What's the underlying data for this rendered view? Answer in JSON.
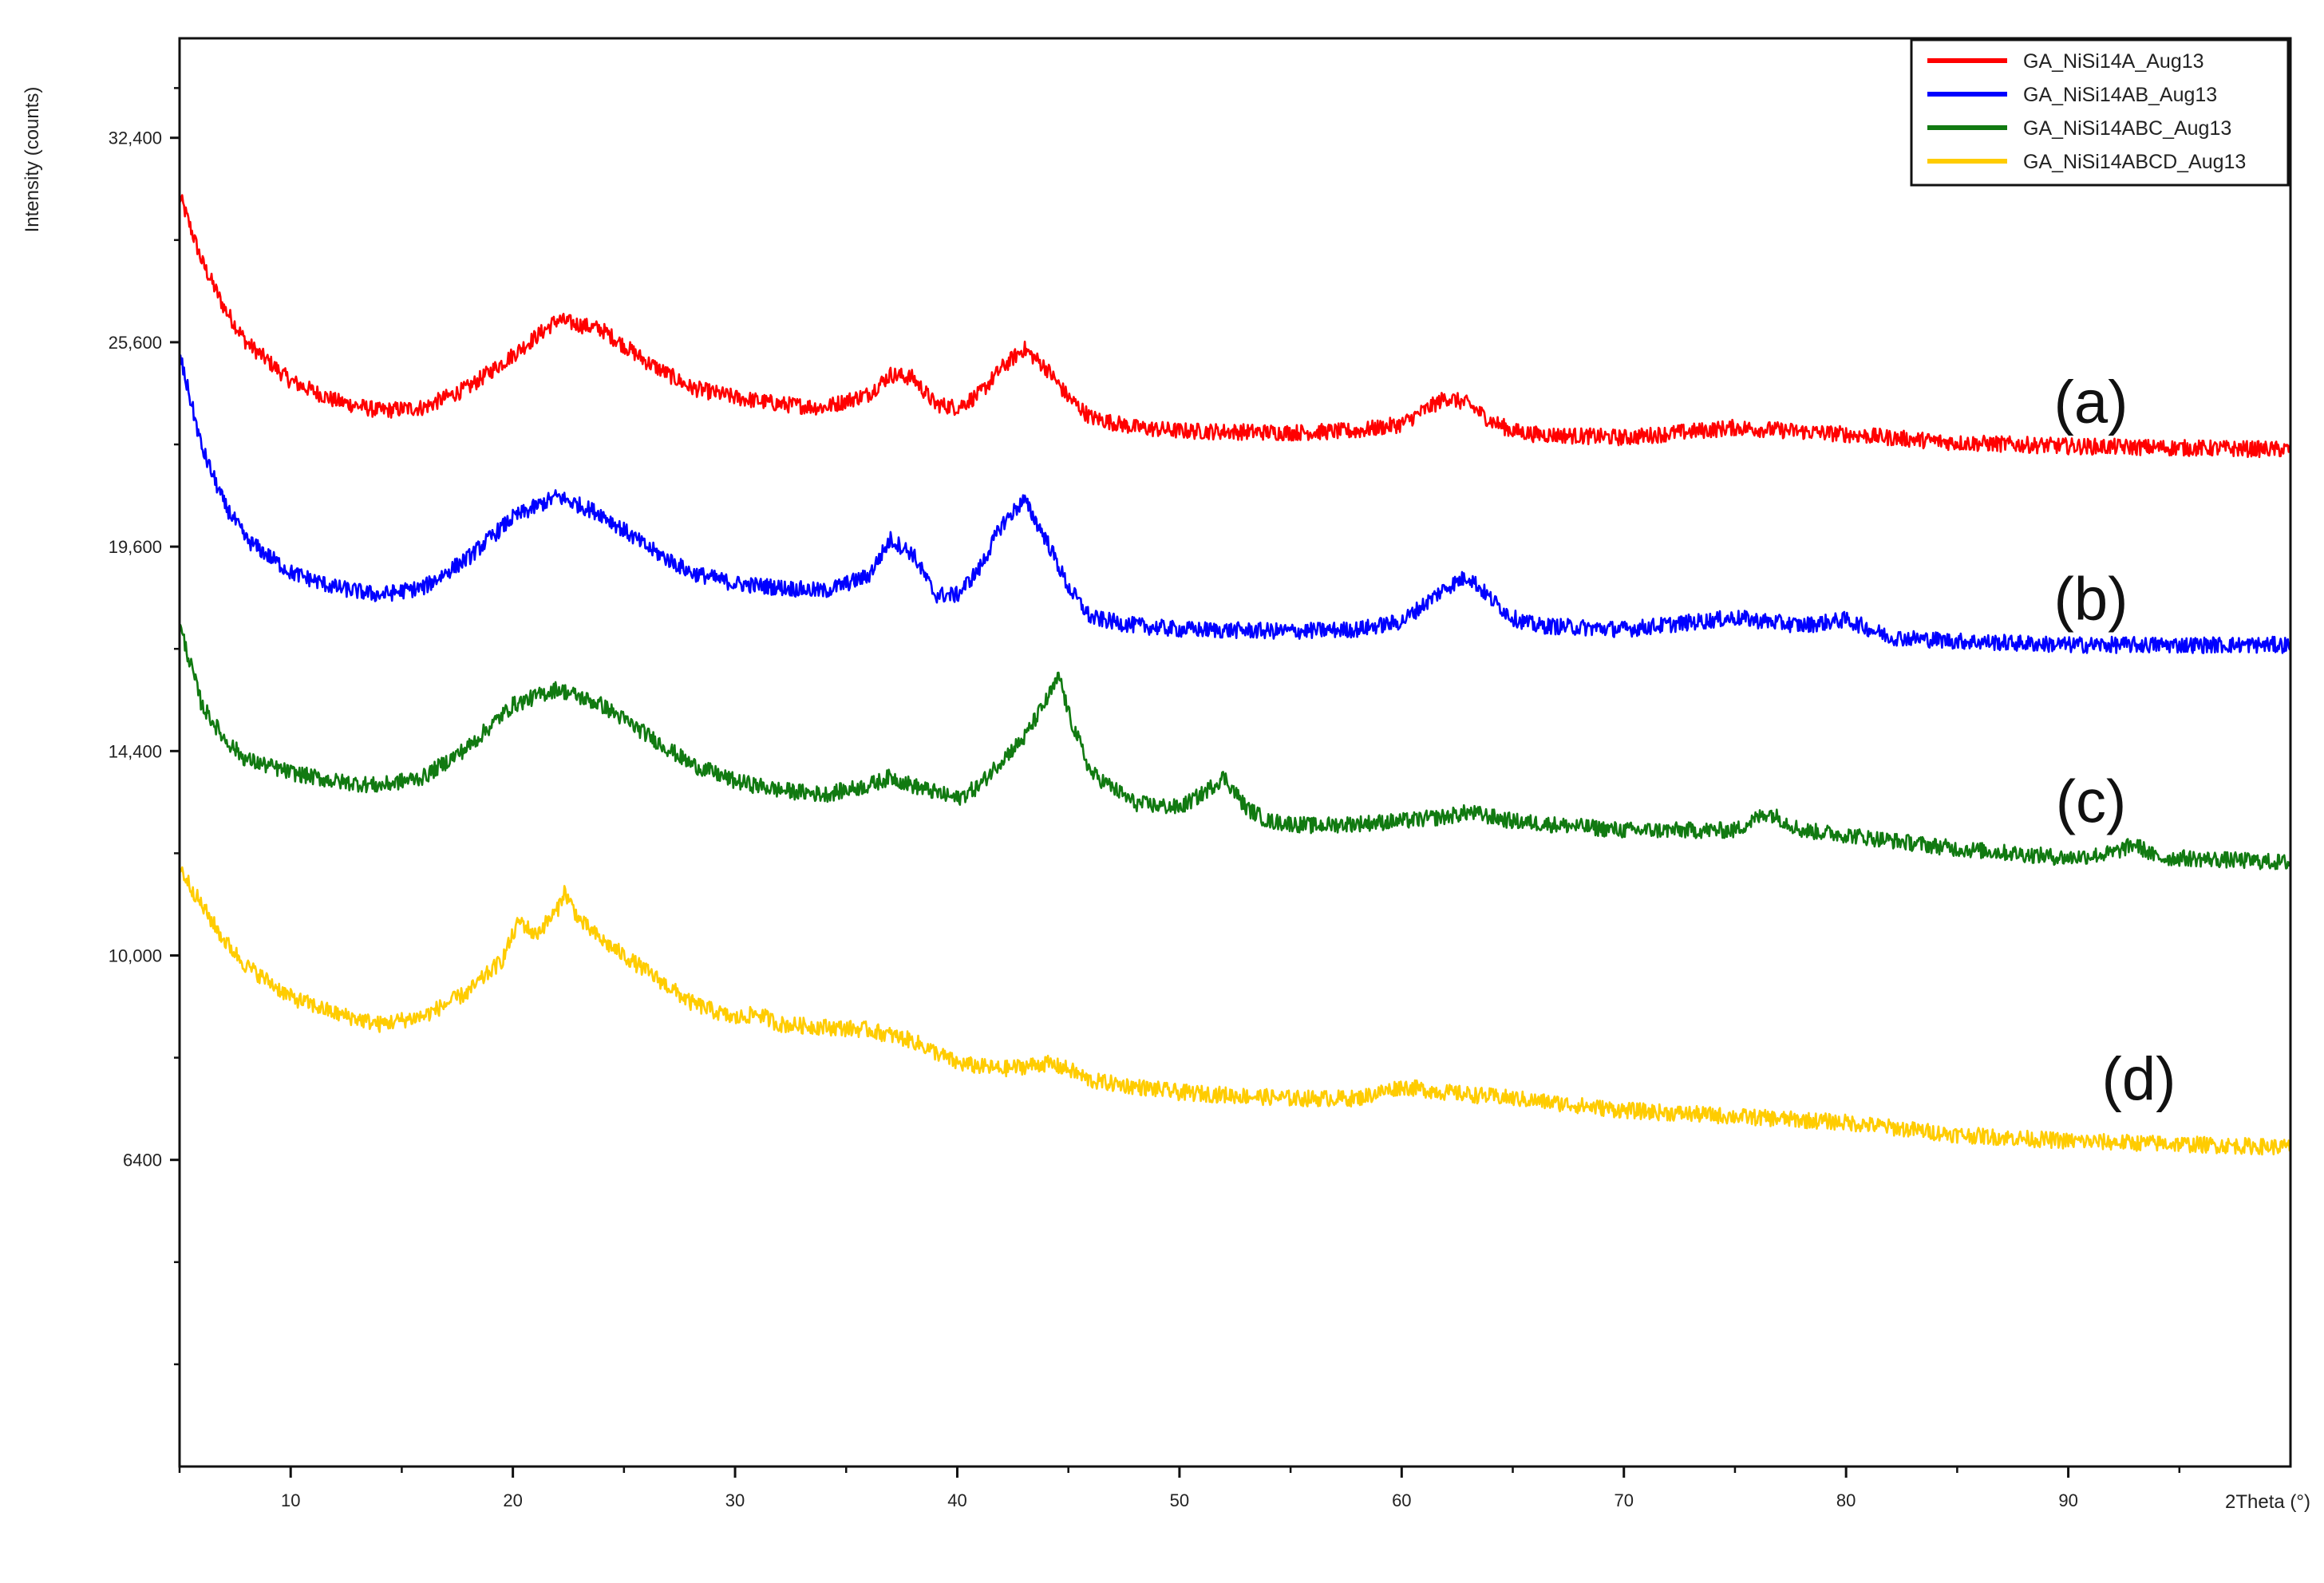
{
  "chart_data": {
    "type": "line",
    "xlabel": "2Theta (°)",
    "ylabel": "Intensity (counts)",
    "xlim": [
      5,
      100
    ],
    "ylim": [
      2500,
      36000
    ],
    "x_ticks": [
      10,
      20,
      30,
      40,
      50,
      60,
      70,
      80,
      90
    ],
    "y_ticks": [
      {
        "value": 32400,
        "label": "32,400"
      },
      {
        "value": 25600,
        "label": "25,600"
      },
      {
        "value": 19600,
        "label": "19,600"
      },
      {
        "value": 14400,
        "label": "14,400"
      },
      {
        "value": 10000,
        "label": "10,000"
      },
      {
        "value": 6400,
        "label": "6400"
      }
    ],
    "y_scale": "sqrt",
    "grid": false,
    "legend_position": "top-right",
    "series": [
      {
        "name": "GA_NiSi14A_Aug13",
        "annotation": "(a)",
        "color": "#ff0000",
        "x": [
          5,
          6,
          7,
          8,
          10,
          12,
          14,
          16,
          18,
          20,
          22,
          24,
          26,
          28,
          30,
          32,
          34,
          36,
          37,
          38,
          39,
          40,
          41,
          42,
          43,
          44,
          45,
          46,
          48,
          50,
          55,
          58,
          60,
          62,
          63,
          64,
          65,
          66,
          70,
          75,
          80,
          85,
          90,
          95,
          100
        ],
        "y": [
          30400,
          28200,
          26700,
          25600,
          24400,
          23800,
          23500,
          23600,
          24200,
          25200,
          26300,
          26000,
          25000,
          24200,
          23900,
          23700,
          23600,
          24000,
          24600,
          24500,
          23700,
          23600,
          24000,
          24800,
          25400,
          24800,
          23900,
          23300,
          23000,
          22900,
          22850,
          22900,
          23100,
          23900,
          23700,
          23200,
          22900,
          22800,
          22700,
          23000,
          22800,
          22550,
          22450,
          22400,
          22350
        ]
      },
      {
        "name": "GA_NiSi14AB_Aug13",
        "annotation": "(b)",
        "color": "#0000ff",
        "x": [
          5,
          6,
          7,
          8,
          10,
          12,
          14,
          16,
          18,
          20,
          22,
          24,
          26,
          28,
          30,
          32,
          34,
          36,
          37,
          38,
          39,
          40,
          41,
          42,
          43,
          44,
          45,
          46,
          48,
          50,
          55,
          58,
          60,
          62,
          63,
          64,
          65,
          66,
          70,
          75,
          78,
          80,
          82,
          85,
          90,
          95,
          100
        ],
        "y": [
          25200,
          22400,
          20800,
          19800,
          18900,
          18500,
          18300,
          18500,
          19300,
          20400,
          21000,
          20500,
          19600,
          18900,
          18600,
          18500,
          18400,
          18800,
          19800,
          19400,
          18300,
          18300,
          19000,
          20200,
          20900,
          19800,
          18500,
          17700,
          17500,
          17400,
          17350,
          17400,
          17600,
          18500,
          18800,
          18200,
          17700,
          17500,
          17400,
          17700,
          17500,
          17650,
          17200,
          17100,
          17000,
          17000,
          17000
        ]
      },
      {
        "name": "GA_NiSi14ABC_Aug13",
        "annotation": "(c)",
        "color": "#117a11",
        "x": [
          5,
          6,
          7,
          8,
          10,
          12,
          14,
          16,
          18,
          20,
          22,
          24,
          26,
          28,
          30,
          32,
          34,
          36,
          37,
          38,
          40,
          41,
          42,
          43,
          44,
          44.6,
          45,
          46,
          48,
          50,
          51,
          52,
          53,
          54,
          56,
          60,
          62,
          63,
          65,
          70,
          75,
          76.5,
          78,
          80,
          85,
          90,
          92,
          93,
          94,
          95,
          100
        ],
        "y": [
          17500,
          15500,
          14700,
          14200,
          13900,
          13700,
          13600,
          13800,
          14500,
          15500,
          15900,
          15500,
          14800,
          14100,
          13700,
          13500,
          13400,
          13600,
          13800,
          13600,
          13300,
          13600,
          14200,
          14700,
          15600,
          16200,
          15300,
          13900,
          13200,
          13100,
          13400,
          13800,
          13100,
          12800,
          12700,
          12800,
          12900,
          13000,
          12800,
          12600,
          12600,
          13000,
          12600,
          12500,
          12200,
          12000,
          12100,
          12300,
          12000,
          12000,
          11900
        ]
      },
      {
        "name": "GA_NiSi14ABCD_Aug13",
        "annotation": "(d)",
        "color": "#ffcc00",
        "x": [
          5,
          6,
          7,
          8,
          10,
          12,
          14,
          16,
          18,
          19.5,
          20.3,
          21,
          22,
          22.3,
          23,
          24,
          26,
          28,
          30,
          31,
          32,
          34,
          36,
          38,
          40,
          42,
          44,
          45,
          46,
          48,
          50,
          55,
          58,
          60,
          62,
          65,
          70,
          75,
          80,
          85,
          90,
          95,
          100
        ],
        "y": [
          11800,
          11000,
          10300,
          9800,
          9200,
          8900,
          8700,
          8850,
          9300,
          9900,
          10700,
          10400,
          10900,
          11300,
          10700,
          10300,
          9700,
          9100,
          8800,
          8900,
          8700,
          8650,
          8600,
          8400,
          8000,
          7900,
          8000,
          7900,
          7700,
          7600,
          7500,
          7400,
          7400,
          7600,
          7500,
          7400,
          7200,
          7100,
          7000,
          6800,
          6700,
          6650,
          6600
        ]
      }
    ]
  }
}
